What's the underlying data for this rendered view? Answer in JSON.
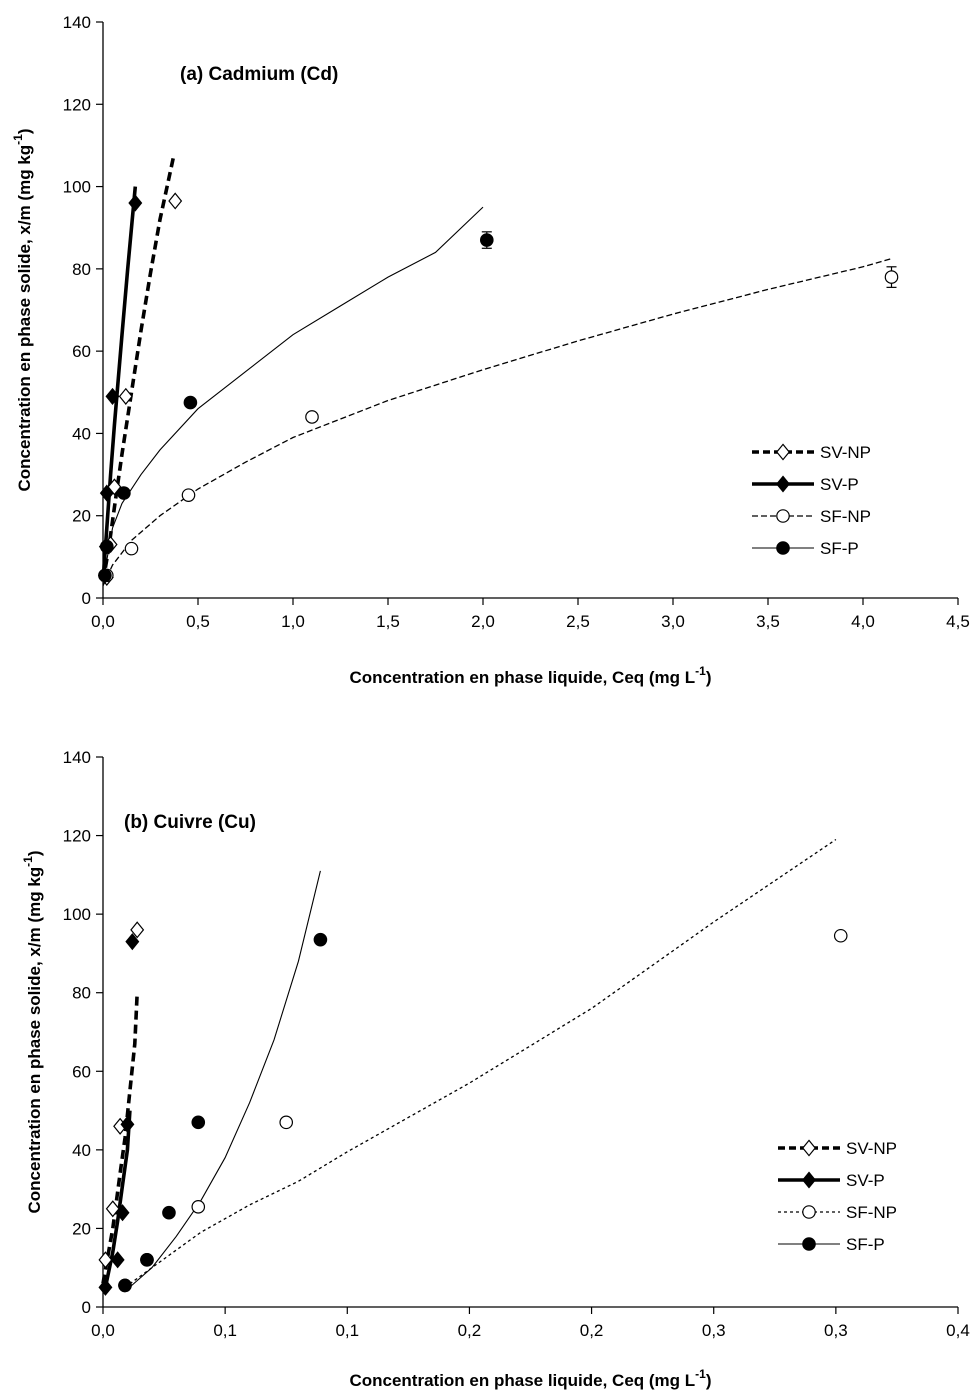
{
  "chart_data": [
    {
      "type": "scatter",
      "title": "(a) Cadmium (Cd)",
      "xlabel": "Concentration en phase liquide, Ceq (mg L",
      "xlabel_sup": "-1",
      "xlabel_close": ")",
      "ylabel": "Concentration en phase solide, x/m (mg kg",
      "ylabel_sup": "-1",
      "ylabel_close": ")",
      "xlim": [
        0,
        4.5
      ],
      "ylim": [
        0,
        140
      ],
      "xticks": [
        0,
        0.5,
        1,
        1.5,
        2,
        2.5,
        3,
        3.5,
        4,
        4.5
      ],
      "xtick_labels": [
        "0,0",
        "0,5",
        "1,0",
        "1,5",
        "2,0",
        "2,5",
        "3,0",
        "3,5",
        "4,0",
        "4,5"
      ],
      "yticks": [
        0,
        20,
        40,
        60,
        80,
        100,
        120,
        140
      ],
      "ytick_labels": [
        "0",
        "20",
        "40",
        "60",
        "80",
        "100",
        "120",
        "140"
      ],
      "legend_position": "lower-right",
      "series": [
        {
          "name": "SV-NP",
          "marker": "diamond-open",
          "line": "thick-dashed",
          "points": [
            [
              0.02,
              5
            ],
            [
              0.04,
              13
            ],
            [
              0.06,
              27
            ],
            [
              0.12,
              49
            ],
            [
              0.38,
              96.5
            ]
          ],
          "fit": [
            [
              0.0,
              4
            ],
            [
              0.03,
              12
            ],
            [
              0.06,
              22
            ],
            [
              0.1,
              35
            ],
            [
              0.15,
              50
            ],
            [
              0.2,
              65
            ],
            [
              0.25,
              79
            ],
            [
              0.3,
              92
            ],
            [
              0.37,
              107
            ]
          ]
        },
        {
          "name": "SV-P",
          "marker": "diamond-filled",
          "line": "thick-solid",
          "points": [
            [
              0.01,
              5.5
            ],
            [
              0.015,
              12.5
            ],
            [
              0.02,
              25.5
            ],
            [
              0.05,
              49
            ],
            [
              0.17,
              96
            ]
          ],
          "fit": [
            [
              0.0,
              4
            ],
            [
              0.02,
              17
            ],
            [
              0.04,
              30
            ],
            [
              0.06,
              42
            ],
            [
              0.08,
              53
            ],
            [
              0.1,
              64
            ],
            [
              0.13,
              80
            ],
            [
              0.16,
              95
            ],
            [
              0.17,
              100
            ]
          ]
        },
        {
          "name": "SF-NP",
          "marker": "circle-open",
          "line": "dashed",
          "points": [
            [
              0.02,
              5.5
            ],
            [
              0.15,
              12
            ],
            [
              0.45,
              25
            ],
            [
              1.1,
              44
            ],
            [
              4.15,
              78
            ]
          ],
          "error_bars": [
            0,
            0,
            0,
            0,
            2.5
          ],
          "fit": [
            [
              0.0,
              3
            ],
            [
              0.05,
              8
            ],
            [
              0.15,
              14
            ],
            [
              0.3,
              20
            ],
            [
              0.5,
              26.5
            ],
            [
              0.75,
              33
            ],
            [
              1.0,
              39
            ],
            [
              1.5,
              48
            ],
            [
              2.0,
              55.5
            ],
            [
              2.5,
              62.5
            ],
            [
              3.0,
              69
            ],
            [
              3.5,
              75
            ],
            [
              4.0,
              80.5
            ],
            [
              4.15,
              82.5
            ]
          ]
        },
        {
          "name": "SF-P",
          "marker": "circle-filled",
          "line": "solid-thin",
          "points": [
            [
              0.01,
              5.5
            ],
            [
              0.02,
              12.5
            ],
            [
              0.11,
              25.5
            ],
            [
              0.46,
              47.5
            ],
            [
              2.02,
              87
            ]
          ],
          "error_bars": [
            0,
            0,
            0,
            0,
            2
          ],
          "fit": [
            [
              0.0,
              4
            ],
            [
              0.05,
              17
            ],
            [
              0.1,
              23
            ],
            [
              0.2,
              30
            ],
            [
              0.3,
              36
            ],
            [
              0.5,
              46
            ],
            [
              0.75,
              55
            ],
            [
              1.0,
              64
            ],
            [
              1.25,
              71
            ],
            [
              1.5,
              78
            ],
            [
              1.75,
              84
            ],
            [
              2.0,
              95
            ]
          ]
        }
      ]
    },
    {
      "type": "scatter",
      "title": "(b) Cuivre (Cu)",
      "xlabel": "Concentration en phase liquide, Ceq (mg L",
      "xlabel_sup": "-1",
      "xlabel_close": ")",
      "ylabel": "Concentration en phase solide, x/m (mg kg",
      "ylabel_sup": "-1",
      "ylabel_close": ")",
      "xlim": [
        0,
        0.35
      ],
      "ylim": [
        0,
        140
      ],
      "xticks": [
        0,
        0.05,
        0.1,
        0.15,
        0.2,
        0.25,
        0.3,
        0.35
      ],
      "xtick_labels": [
        "0,0",
        "0,1",
        "0,1",
        "0,2",
        "0,2",
        "0,3",
        "0,3",
        "0,4"
      ],
      "yticks": [
        0,
        20,
        40,
        60,
        80,
        100,
        120,
        140
      ],
      "ytick_labels": [
        "0",
        "20",
        "40",
        "60",
        "80",
        "100",
        "120",
        "140"
      ],
      "legend_position": "lower-right",
      "series": [
        {
          "name": "SV-NP",
          "marker": "diamond-open",
          "line": "thick-dashed",
          "points": [
            [
              0.001,
              12
            ],
            [
              0.004,
              25
            ],
            [
              0.007,
              46
            ],
            [
              0.014,
              96
            ]
          ],
          "fit": [
            [
              0.0,
              6
            ],
            [
              0.004,
              20
            ],
            [
              0.007,
              34
            ],
            [
              0.009,
              43
            ],
            [
              0.011,
              55
            ],
            [
              0.013,
              67
            ],
            [
              0.014,
              80
            ]
          ]
        },
        {
          "name": "SV-P",
          "marker": "diamond-filled",
          "line": "thick-solid",
          "points": [
            [
              0.001,
              5
            ],
            [
              0.006,
              12
            ],
            [
              0.008,
              24
            ],
            [
              0.01,
              46.5
            ],
            [
              0.012,
              93
            ]
          ],
          "fit": [
            [
              0.001,
              5
            ],
            [
              0.004,
              14
            ],
            [
              0.006,
              22
            ],
            [
              0.008,
              31
            ],
            [
              0.01,
              40
            ],
            [
              0.011,
              50
            ]
          ]
        },
        {
          "name": "SF-NP",
          "marker": "circle-open",
          "line": "dotted",
          "points": [
            [
              0.009,
              5.5
            ],
            [
              0.018,
              12
            ],
            [
              0.039,
              25.5
            ],
            [
              0.075,
              47
            ],
            [
              0.302,
              94.5
            ]
          ],
          "fit": [
            [
              0.009,
              5
            ],
            [
              0.02,
              10
            ],
            [
              0.04,
              19
            ],
            [
              0.06,
              26
            ],
            [
              0.08,
              32
            ],
            [
              0.1,
              39.5
            ],
            [
              0.15,
              57
            ],
            [
              0.2,
              76
            ],
            [
              0.25,
              98
            ],
            [
              0.3,
              119
            ]
          ]
        },
        {
          "name": "SF-P",
          "marker": "circle-filled",
          "line": "solid-thin",
          "points": [
            [
              0.009,
              5.5
            ],
            [
              0.018,
              12
            ],
            [
              0.027,
              24
            ],
            [
              0.039,
              47
            ],
            [
              0.089,
              93.5
            ]
          ],
          "fit": [
            [
              0.009,
              4
            ],
            [
              0.02,
              10
            ],
            [
              0.03,
              18
            ],
            [
              0.04,
              27
            ],
            [
              0.05,
              38
            ],
            [
              0.06,
              52
            ],
            [
              0.07,
              68
            ],
            [
              0.08,
              88
            ],
            [
              0.089,
              111
            ]
          ]
        }
      ]
    }
  ]
}
